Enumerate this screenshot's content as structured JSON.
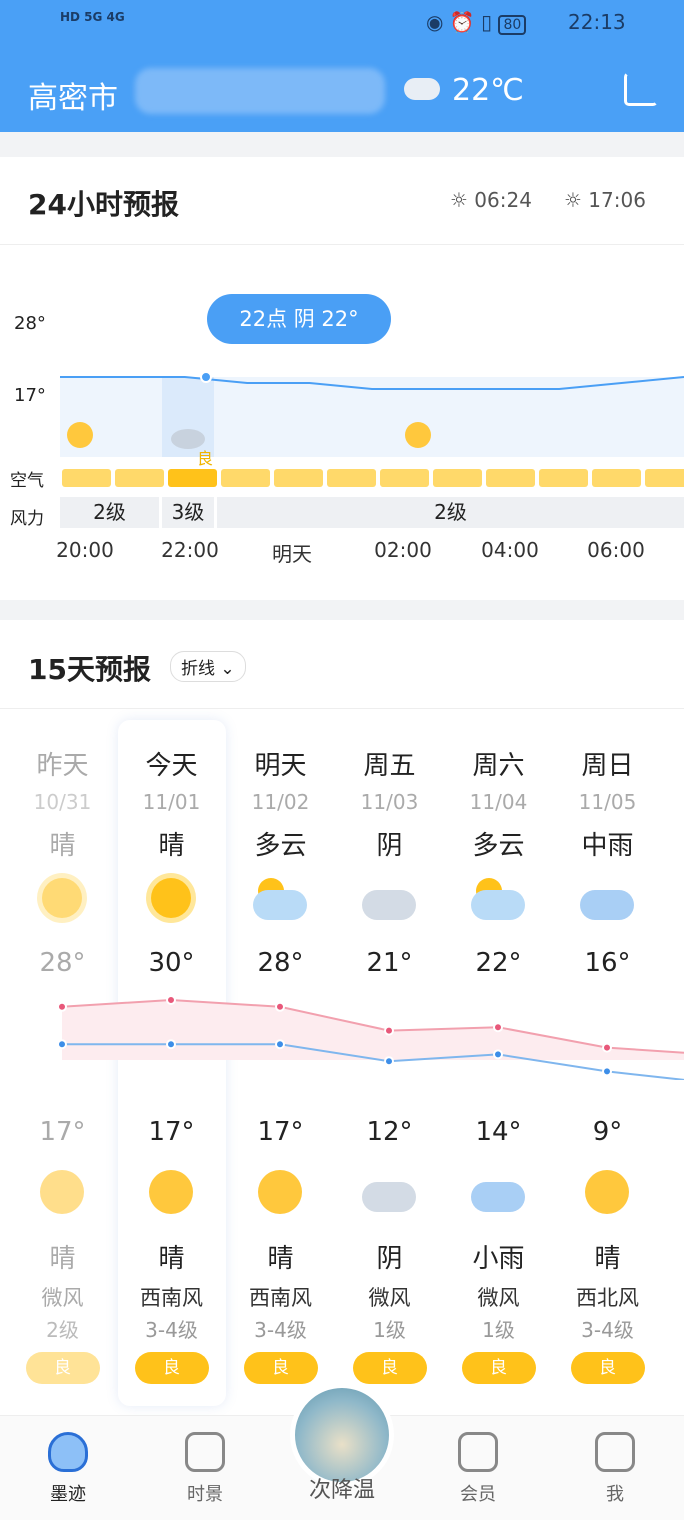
{
  "status": {
    "left": "HD 5G 4G",
    "battery": "80",
    "time": "22:13"
  },
  "header": {
    "city": "高密市",
    "temp": "22℃",
    "weather_icon": "cloud-icon",
    "share_icon": "share-icon"
  },
  "hourly": {
    "title": "24小时预报",
    "sunrise": "06:24",
    "sunset": "17:06",
    "y_ticks": [
      "28°",
      "17°"
    ],
    "tooltip": "22点 阴 22°",
    "aq_label": "良",
    "row_air": "空气",
    "row_wind": "风力",
    "wind": [
      "2级",
      "3级",
      "2级"
    ],
    "times": [
      "20:00",
      "22:00",
      "明天",
      "02:00",
      "04:00",
      "06:00"
    ],
    "temps": [
      22,
      22,
      22,
      21,
      21,
      20,
      20,
      20,
      20,
      21,
      22
    ],
    "colors": {
      "aq": "#ffd96a",
      "aq_active": "#ffc21a",
      "line": "#4a9ff5"
    }
  },
  "daily": {
    "title": "15天预报",
    "mode": "折线",
    "days": [
      {
        "name": "昨天",
        "date": "10/31",
        "day": "晴",
        "high": "28°",
        "low": "17°",
        "night": "晴",
        "wind": "微风",
        "level": "2级",
        "aq": "良",
        "icon": "sun-icon",
        "nicon": "moon-icon"
      },
      {
        "name": "今天",
        "date": "11/01",
        "day": "晴",
        "high": "30°",
        "low": "17°",
        "night": "晴",
        "wind": "西南风",
        "level": "3-4级",
        "aq": "良",
        "icon": "sun-icon",
        "nicon": "moon-icon"
      },
      {
        "name": "明天",
        "date": "11/02",
        "day": "多云",
        "high": "28°",
        "low": "17°",
        "night": "晴",
        "wind": "西南风",
        "level": "3-4级",
        "aq": "良",
        "icon": "partly-cloudy-icon",
        "nicon": "moon-icon"
      },
      {
        "name": "周五",
        "date": "11/03",
        "day": "阴",
        "high": "21°",
        "low": "12°",
        "night": "阴",
        "wind": "微风",
        "level": "1级",
        "aq": "良",
        "icon": "cloud-icon",
        "nicon": "cloud-icon"
      },
      {
        "name": "周六",
        "date": "11/04",
        "day": "多云",
        "high": "22°",
        "low": "14°",
        "night": "小雨",
        "wind": "微风",
        "level": "1级",
        "aq": "良",
        "icon": "partly-cloudy-icon",
        "nicon": "rain-icon"
      },
      {
        "name": "周日",
        "date": "11/05",
        "day": "中雨",
        "high": "16°",
        "low": "9°",
        "night": "晴",
        "wind": "西北风",
        "level": "3-4级",
        "aq": "良",
        "icon": "rain-icon",
        "nicon": "moon-icon"
      }
    ],
    "highs": [
      28,
      30,
      28,
      21,
      22,
      16
    ],
    "lows": [
      17,
      17,
      17,
      12,
      14,
      9
    ]
  },
  "nav": [
    {
      "label": "墨迹",
      "icon": "rocket-icon"
    },
    {
      "label": "时景",
      "icon": "image-icon"
    },
    {
      "label": "次降温",
      "icon": "sky-photo-icon"
    },
    {
      "label": "会员",
      "icon": "grid-icon"
    },
    {
      "label": "我",
      "icon": "user-icon"
    }
  ]
}
